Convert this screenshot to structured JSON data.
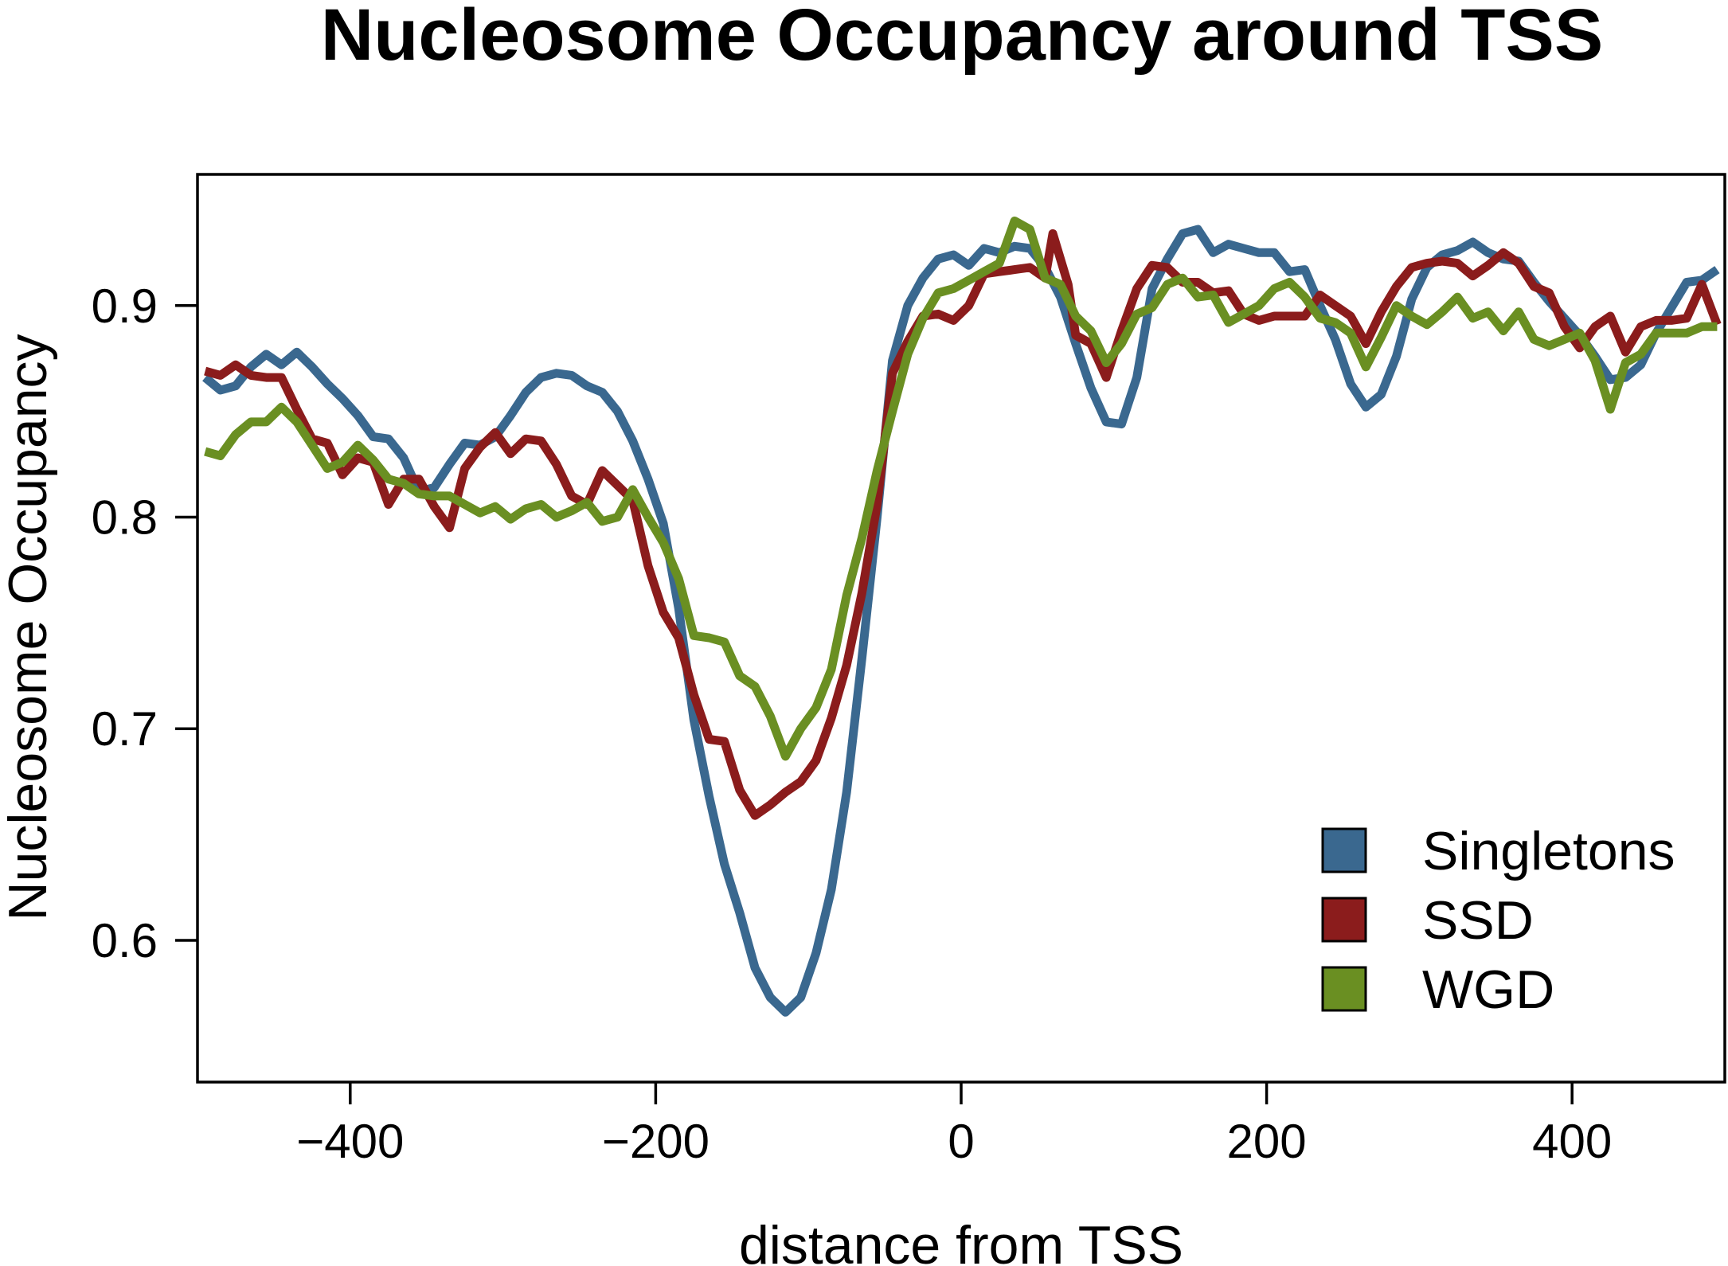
{
  "chart_data": {
    "type": "line",
    "title": "Nucleosome Occupancy around TSS",
    "xlabel": "distance from TSS",
    "ylabel": "Nucleosome Occupancy",
    "xlim": [
      -500,
      500
    ],
    "ylim": [
      0.533,
      0.962
    ],
    "x_ticks": [
      -400,
      -200,
      0,
      200,
      400
    ],
    "x_tick_labels": [
      "−400",
      "−200",
      "0",
      "200",
      "400"
    ],
    "y_ticks": [
      0.6,
      0.7,
      0.8,
      0.9
    ],
    "y_tick_labels": [
      "0.6",
      "0.7",
      "0.8",
      "0.9"
    ],
    "grid": false,
    "legend_position": "bottom-right",
    "series": [
      {
        "name": "Singletons",
        "color": "#3a688f",
        "points": [
          [
            -495,
            0.866
          ],
          [
            -485,
            0.86
          ],
          [
            -475,
            0.862
          ],
          [
            -465,
            0.871
          ],
          [
            -455,
            0.877
          ],
          [
            -445,
            0.872
          ],
          [
            -435,
            0.878
          ],
          [
            -425,
            0.871
          ],
          [
            -415,
            0.863
          ],
          [
            -405,
            0.856
          ],
          [
            -395,
            0.848
          ],
          [
            -385,
            0.838
          ],
          [
            -375,
            0.837
          ],
          [
            -365,
            0.828
          ],
          [
            -355,
            0.812
          ],
          [
            -345,
            0.814
          ],
          [
            -335,
            0.825
          ],
          [
            -325,
            0.835
          ],
          [
            -315,
            0.834
          ],
          [
            -305,
            0.838
          ],
          [
            -295,
            0.848
          ],
          [
            -285,
            0.859
          ],
          [
            -275,
            0.866
          ],
          [
            -265,
            0.868
          ],
          [
            -255,
            0.867
          ],
          [
            -245,
            0.862
          ],
          [
            -235,
            0.859
          ],
          [
            -225,
            0.85
          ],
          [
            -215,
            0.836
          ],
          [
            -205,
            0.818
          ],
          [
            -195,
            0.797
          ],
          [
            -185,
            0.757
          ],
          [
            -175,
            0.704
          ],
          [
            -165,
            0.668
          ],
          [
            -155,
            0.636
          ],
          [
            -145,
            0.613
          ],
          [
            -135,
            0.587
          ],
          [
            -125,
            0.573
          ],
          [
            -115,
            0.566
          ],
          [
            -105,
            0.573
          ],
          [
            -95,
            0.594
          ],
          [
            -85,
            0.624
          ],
          [
            -75,
            0.67
          ],
          [
            -65,
            0.733
          ],
          [
            -55,
            0.8
          ],
          [
            -45,
            0.874
          ],
          [
            -35,
            0.9
          ],
          [
            -25,
            0.913
          ],
          [
            -15,
            0.922
          ],
          [
            -5,
            0.924
          ],
          [
            5,
            0.919
          ],
          [
            15,
            0.927
          ],
          [
            25,
            0.925
          ],
          [
            35,
            0.928
          ],
          [
            45,
            0.927
          ],
          [
            55,
            0.918
          ],
          [
            65,
            0.904
          ],
          [
            75,
            0.882
          ],
          [
            85,
            0.861
          ],
          [
            95,
            0.845
          ],
          [
            105,
            0.844
          ],
          [
            115,
            0.866
          ],
          [
            125,
            0.908
          ],
          [
            135,
            0.922
          ],
          [
            145,
            0.934
          ],
          [
            155,
            0.936
          ],
          [
            165,
            0.925
          ],
          [
            175,
            0.929
          ],
          [
            185,
            0.927
          ],
          [
            195,
            0.925
          ],
          [
            205,
            0.925
          ],
          [
            215,
            0.916
          ],
          [
            225,
            0.917
          ],
          [
            235,
            0.9
          ],
          [
            245,
            0.884
          ],
          [
            255,
            0.863
          ],
          [
            265,
            0.852
          ],
          [
            275,
            0.858
          ],
          [
            285,
            0.876
          ],
          [
            295,
            0.903
          ],
          [
            305,
            0.918
          ],
          [
            315,
            0.924
          ],
          [
            325,
            0.926
          ],
          [
            335,
            0.93
          ],
          [
            345,
            0.925
          ],
          [
            355,
            0.922
          ],
          [
            365,
            0.921
          ],
          [
            375,
            0.911
          ],
          [
            385,
            0.902
          ],
          [
            395,
            0.894
          ],
          [
            405,
            0.886
          ],
          [
            415,
            0.876
          ],
          [
            425,
            0.865
          ],
          [
            435,
            0.866
          ],
          [
            445,
            0.872
          ],
          [
            455,
            0.887
          ],
          [
            465,
            0.899
          ],
          [
            475,
            0.911
          ],
          [
            485,
            0.912
          ],
          [
            495,
            0.917
          ]
        ]
      },
      {
        "name": "SSD",
        "color": "#8b1c1c",
        "points": [
          [
            -495,
            0.869
          ],
          [
            -485,
            0.867
          ],
          [
            -475,
            0.872
          ],
          [
            -465,
            0.867
          ],
          [
            -455,
            0.866
          ],
          [
            -445,
            0.866
          ],
          [
            -435,
            0.851
          ],
          [
            -425,
            0.837
          ],
          [
            -415,
            0.835
          ],
          [
            -405,
            0.82
          ],
          [
            -395,
            0.828
          ],
          [
            -385,
            0.826
          ],
          [
            -375,
            0.806
          ],
          [
            -365,
            0.818
          ],
          [
            -355,
            0.818
          ],
          [
            -345,
            0.805
          ],
          [
            -335,
            0.795
          ],
          [
            -325,
            0.823
          ],
          [
            -315,
            0.833
          ],
          [
            -305,
            0.84
          ],
          [
            -295,
            0.83
          ],
          [
            -285,
            0.837
          ],
          [
            -275,
            0.836
          ],
          [
            -265,
            0.825
          ],
          [
            -255,
            0.81
          ],
          [
            -245,
            0.806
          ],
          [
            -235,
            0.822
          ],
          [
            -225,
            0.815
          ],
          [
            -215,
            0.808
          ],
          [
            -205,
            0.777
          ],
          [
            -195,
            0.755
          ],
          [
            -185,
            0.743
          ],
          [
            -175,
            0.716
          ],
          [
            -165,
            0.695
          ],
          [
            -155,
            0.694
          ],
          [
            -145,
            0.671
          ],
          [
            -135,
            0.659
          ],
          [
            -125,
            0.664
          ],
          [
            -115,
            0.67
          ],
          [
            -105,
            0.675
          ],
          [
            -95,
            0.685
          ],
          [
            -85,
            0.705
          ],
          [
            -75,
            0.73
          ],
          [
            -65,
            0.764
          ],
          [
            -55,
            0.806
          ],
          [
            -45,
            0.868
          ],
          [
            -35,
            0.883
          ],
          [
            -25,
            0.895
          ],
          [
            -15,
            0.896
          ],
          [
            -5,
            0.893
          ],
          [
            5,
            0.9
          ],
          [
            15,
            0.915
          ],
          [
            25,
            0.916
          ],
          [
            35,
            0.917
          ],
          [
            45,
            0.918
          ],
          [
            55,
            0.913
          ],
          [
            60,
            0.934
          ],
          [
            70,
            0.91
          ],
          [
            75,
            0.886
          ],
          [
            85,
            0.882
          ],
          [
            95,
            0.866
          ],
          [
            105,
            0.888
          ],
          [
            115,
            0.908
          ],
          [
            125,
            0.919
          ],
          [
            135,
            0.918
          ],
          [
            145,
            0.911
          ],
          [
            155,
            0.911
          ],
          [
            165,
            0.906
          ],
          [
            175,
            0.907
          ],
          [
            185,
            0.896
          ],
          [
            195,
            0.893
          ],
          [
            205,
            0.895
          ],
          [
            215,
            0.895
          ],
          [
            225,
            0.895
          ],
          [
            235,
            0.905
          ],
          [
            245,
            0.9
          ],
          [
            255,
            0.895
          ],
          [
            265,
            0.882
          ],
          [
            275,
            0.897
          ],
          [
            285,
            0.909
          ],
          [
            295,
            0.918
          ],
          [
            305,
            0.92
          ],
          [
            315,
            0.921
          ],
          [
            325,
            0.92
          ],
          [
            335,
            0.914
          ],
          [
            345,
            0.919
          ],
          [
            355,
            0.925
          ],
          [
            365,
            0.92
          ],
          [
            375,
            0.909
          ],
          [
            385,
            0.906
          ],
          [
            395,
            0.89
          ],
          [
            405,
            0.88
          ],
          [
            415,
            0.89
          ],
          [
            425,
            0.895
          ],
          [
            435,
            0.878
          ],
          [
            445,
            0.89
          ],
          [
            455,
            0.893
          ],
          [
            465,
            0.893
          ],
          [
            475,
            0.894
          ],
          [
            485,
            0.91
          ],
          [
            495,
            0.891
          ]
        ]
      },
      {
        "name": "WGD",
        "color": "#6a8f22",
        "points": [
          [
            -495,
            0.831
          ],
          [
            -485,
            0.829
          ],
          [
            -475,
            0.839
          ],
          [
            -465,
            0.845
          ],
          [
            -455,
            0.845
          ],
          [
            -445,
            0.852
          ],
          [
            -435,
            0.845
          ],
          [
            -425,
            0.834
          ],
          [
            -415,
            0.823
          ],
          [
            -405,
            0.826
          ],
          [
            -395,
            0.834
          ],
          [
            -385,
            0.827
          ],
          [
            -375,
            0.818
          ],
          [
            -365,
            0.816
          ],
          [
            -355,
            0.811
          ],
          [
            -345,
            0.81
          ],
          [
            -335,
            0.81
          ],
          [
            -325,
            0.806
          ],
          [
            -315,
            0.802
          ],
          [
            -305,
            0.805
          ],
          [
            -295,
            0.799
          ],
          [
            -285,
            0.804
          ],
          [
            -275,
            0.806
          ],
          [
            -265,
            0.8
          ],
          [
            -255,
            0.803
          ],
          [
            -245,
            0.807
          ],
          [
            -235,
            0.798
          ],
          [
            -225,
            0.8
          ],
          [
            -215,
            0.813
          ],
          [
            -205,
            0.8
          ],
          [
            -195,
            0.788
          ],
          [
            -185,
            0.771
          ],
          [
            -175,
            0.744
          ],
          [
            -165,
            0.743
          ],
          [
            -155,
            0.741
          ],
          [
            -145,
            0.725
          ],
          [
            -135,
            0.72
          ],
          [
            -125,
            0.706
          ],
          [
            -115,
            0.687
          ],
          [
            -105,
            0.7
          ],
          [
            -95,
            0.71
          ],
          [
            -85,
            0.728
          ],
          [
            -75,
            0.763
          ],
          [
            -65,
            0.79
          ],
          [
            -55,
            0.822
          ],
          [
            -45,
            0.85
          ],
          [
            -35,
            0.877
          ],
          [
            -25,
            0.894
          ],
          [
            -15,
            0.906
          ],
          [
            -5,
            0.908
          ],
          [
            5,
            0.912
          ],
          [
            15,
            0.916
          ],
          [
            25,
            0.92
          ],
          [
            35,
            0.94
          ],
          [
            45,
            0.936
          ],
          [
            55,
            0.913
          ],
          [
            65,
            0.91
          ],
          [
            75,
            0.895
          ],
          [
            85,
            0.888
          ],
          [
            95,
            0.873
          ],
          [
            105,
            0.882
          ],
          [
            115,
            0.896
          ],
          [
            125,
            0.899
          ],
          [
            135,
            0.91
          ],
          [
            145,
            0.913
          ],
          [
            155,
            0.904
          ],
          [
            165,
            0.905
          ],
          [
            175,
            0.892
          ],
          [
            185,
            0.896
          ],
          [
            195,
            0.9
          ],
          [
            205,
            0.908
          ],
          [
            215,
            0.911
          ],
          [
            225,
            0.904
          ],
          [
            235,
            0.894
          ],
          [
            245,
            0.892
          ],
          [
            255,
            0.887
          ],
          [
            265,
            0.871
          ],
          [
            275,
            0.885
          ],
          [
            285,
            0.9
          ],
          [
            295,
            0.895
          ],
          [
            305,
            0.891
          ],
          [
            315,
            0.897
          ],
          [
            325,
            0.904
          ],
          [
            335,
            0.894
          ],
          [
            345,
            0.897
          ],
          [
            355,
            0.888
          ],
          [
            365,
            0.897
          ],
          [
            375,
            0.884
          ],
          [
            385,
            0.881
          ],
          [
            395,
            0.884
          ],
          [
            405,
            0.887
          ],
          [
            415,
            0.874
          ],
          [
            425,
            0.851
          ],
          [
            435,
            0.873
          ],
          [
            445,
            0.877
          ],
          [
            455,
            0.887
          ],
          [
            465,
            0.887
          ],
          [
            475,
            0.887
          ],
          [
            485,
            0.89
          ],
          [
            495,
            0.89
          ]
        ]
      }
    ]
  }
}
